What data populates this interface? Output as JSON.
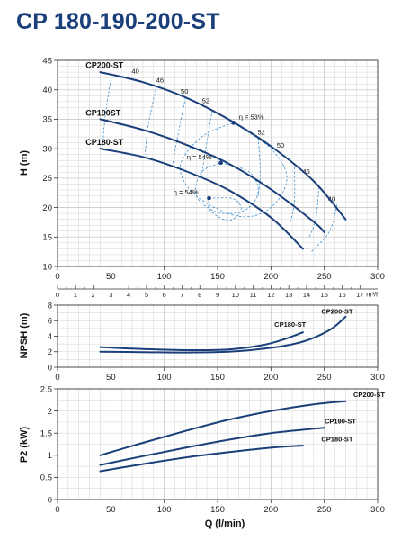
{
  "title": "CP 180-190-200-ST",
  "colors": {
    "curve": "#1b3f7a",
    "iso": "#3a8fd0",
    "grid": "#c8c8c8",
    "title": "#1b3f7a"
  },
  "chart_data": [
    {
      "type": "line",
      "ylabel": "H (m)",
      "ylim": [
        10,
        45
      ],
      "xlim": [
        0,
        300
      ],
      "yticks": [
        10,
        15,
        20,
        25,
        30,
        35,
        40,
        45
      ],
      "xticks": [
        0,
        50,
        100,
        150,
        200,
        250,
        300
      ],
      "secondary_xlabel": "m³/h",
      "secondary_xticks": [
        "0",
        "1",
        "2",
        "3",
        "4",
        "5",
        "6",
        "7",
        "8",
        "9",
        "10",
        "11",
        "12",
        "13",
        "14",
        "15",
        "16",
        "17"
      ],
      "series": [
        {
          "name": "CP200-ST",
          "x": [
            40,
            80,
            120,
            160,
            200,
            240,
            270
          ],
          "y": [
            43,
            41.3,
            38.7,
            35,
            30.4,
            24.5,
            18
          ]
        },
        {
          "name": "CP190ST",
          "x": [
            40,
            80,
            120,
            160,
            200,
            240,
            250
          ],
          "y": [
            35,
            33.2,
            30.7,
            27.5,
            23.1,
            17.6,
            15.8
          ]
        },
        {
          "name": "CP180-ST",
          "x": [
            40,
            80,
            120,
            160,
            200,
            230
          ],
          "y": [
            30,
            28.6,
            26.2,
            23,
            18.3,
            13
          ]
        }
      ],
      "iso_diameter_labels": [
        "40",
        "46",
        "50",
        "52",
        "52",
        "50",
        "46",
        "40"
      ],
      "efficiency_labels": [
        {
          "text": "η = 53%",
          "x": 165,
          "y": 34.4
        },
        {
          "text": "η = 54%",
          "x": 153,
          "y": 27.6
        },
        {
          "text": "η = 54%",
          "x": 142,
          "y": 21.6
        }
      ]
    },
    {
      "type": "line",
      "ylabel": "NPSH (m)",
      "ylim": [
        0,
        8
      ],
      "xlim": [
        0,
        300
      ],
      "yticks": [
        0,
        2,
        4,
        6,
        8
      ],
      "xticks": [
        0,
        50,
        100,
        150,
        200,
        250,
        300
      ],
      "series": [
        {
          "name": "CP180-ST",
          "x": [
            40,
            80,
            120,
            160,
            190,
            210,
            230
          ],
          "y": [
            2.6,
            2.35,
            2.2,
            2.3,
            2.8,
            3.5,
            4.5
          ]
        },
        {
          "name": "CP200-ST",
          "x": [
            40,
            80,
            120,
            160,
            200,
            230,
            255,
            270
          ],
          "y": [
            2,
            1.95,
            1.9,
            2.0,
            2.5,
            3.3,
            4.8,
            6.5
          ]
        }
      ]
    },
    {
      "type": "line",
      "ylabel": "P2 (kW)",
      "xlabel": "Q (l/min)",
      "ylim": [
        0,
        2.5
      ],
      "xlim": [
        0,
        300
      ],
      "yticks": [
        0,
        0.5,
        1,
        1.5,
        2,
        2.5
      ],
      "xticks": [
        0,
        50,
        100,
        150,
        200,
        250,
        300
      ],
      "series": [
        {
          "name": "CP200-ST",
          "x": [
            40,
            80,
            120,
            160,
            200,
            240,
            270
          ],
          "y": [
            1.0,
            1.28,
            1.55,
            1.8,
            2.0,
            2.15,
            2.22
          ]
        },
        {
          "name": "CP190-ST",
          "x": [
            40,
            80,
            120,
            160,
            200,
            240,
            250
          ],
          "y": [
            0.78,
            0.98,
            1.17,
            1.35,
            1.5,
            1.6,
            1.62
          ]
        },
        {
          "name": "CP180-ST",
          "x": [
            40,
            80,
            120,
            160,
            200,
            230
          ],
          "y": [
            0.64,
            0.8,
            0.95,
            1.07,
            1.17,
            1.22
          ]
        }
      ]
    }
  ]
}
